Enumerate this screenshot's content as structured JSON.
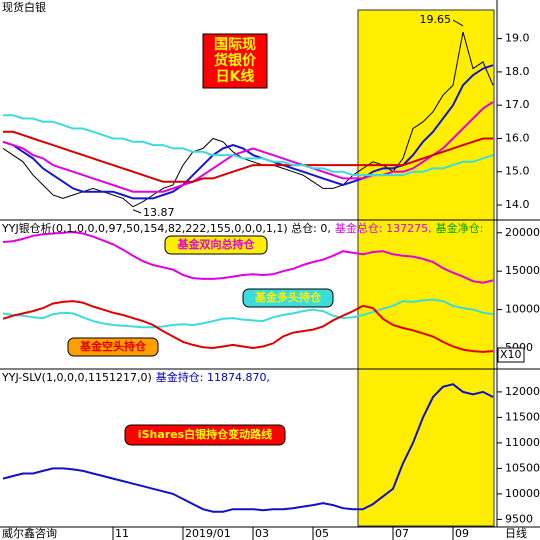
{
  "chart_data": [
    {
      "type": "line",
      "title": "现货白银",
      "label_lines": [
        "国际现",
        "货银价",
        "日K线"
      ],
      "annotations": [
        "19.65",
        "13.87"
      ],
      "ylim": [
        13.7,
        19.8
      ],
      "yticks": [
        {
          "value": 14,
          "label": "14.0"
        },
        {
          "value": 15,
          "label": "15.0"
        },
        {
          "value": 16,
          "label": "16.0"
        },
        {
          "value": 17,
          "label": "17.0"
        },
        {
          "value": 18,
          "label": "18.0"
        },
        {
          "value": 19,
          "label": "19.0"
        }
      ],
      "series": [
        {
          "color": "#000000",
          "values": [
            15.7,
            15.5,
            15.3,
            14.9,
            14.6,
            14.3,
            14.2,
            14.3,
            14.4,
            14.5,
            14.4,
            14.3,
            14.2,
            13.95,
            14.1,
            14.3,
            14.5,
            14.6,
            15.2,
            15.6,
            15.7,
            16.0,
            15.9,
            15.6,
            15.4,
            15.3,
            15.2,
            15.2,
            15.1,
            15.0,
            14.9,
            14.7,
            14.5,
            14.5,
            14.6,
            14.9,
            15.1,
            15.3,
            15.2,
            15.0,
            15.4,
            16.3,
            16.5,
            16.8,
            17.3,
            17.6,
            19.2,
            18.1,
            18.3,
            17.6
          ]
        },
        {
          "color": "#1515d0",
          "values": [
            15.9,
            15.8,
            15.6,
            15.4,
            15.1,
            14.9,
            14.7,
            14.5,
            14.4,
            14.4,
            14.4,
            14.4,
            14.3,
            14.2,
            14.2,
            14.2,
            14.3,
            14.4,
            14.6,
            14.9,
            15.2,
            15.5,
            15.7,
            15.8,
            15.7,
            15.5,
            15.4,
            15.3,
            15.2,
            15.1,
            15.0,
            14.9,
            14.8,
            14.7,
            14.6,
            14.7,
            14.8,
            15.0,
            15.1,
            15.1,
            15.2,
            15.5,
            15.9,
            16.2,
            16.6,
            17.0,
            17.6,
            17.9,
            18.1,
            18.2
          ]
        },
        {
          "color": "#e000e0",
          "values": [
            15.9,
            15.8,
            15.7,
            15.5,
            15.4,
            15.2,
            15.1,
            15.0,
            14.9,
            14.8,
            14.7,
            14.6,
            14.5,
            14.4,
            14.4,
            14.4,
            14.4,
            14.5,
            14.6,
            14.7,
            14.9,
            15.1,
            15.3,
            15.5,
            15.6,
            15.7,
            15.6,
            15.5,
            15.4,
            15.3,
            15.2,
            15.1,
            15.0,
            14.9,
            14.8,
            14.8,
            14.8,
            14.9,
            14.9,
            15.0,
            15.0,
            15.1,
            15.3,
            15.5,
            15.7,
            16.0,
            16.3,
            16.6,
            16.9,
            17.1
          ]
        },
        {
          "color": "#d40000",
          "values": [
            16.2,
            16.2,
            16.1,
            16.0,
            15.9,
            15.8,
            15.7,
            15.6,
            15.5,
            15.4,
            15.3,
            15.2,
            15.1,
            15.0,
            14.9,
            14.8,
            14.7,
            14.7,
            14.7,
            14.7,
            14.8,
            14.8,
            14.9,
            15.0,
            15.1,
            15.2,
            15.2,
            15.2,
            15.2,
            15.2,
            15.2,
            15.2,
            15.2,
            15.2,
            15.2,
            15.2,
            15.2,
            15.2,
            15.2,
            15.2,
            15.2,
            15.3,
            15.4,
            15.5,
            15.6,
            15.7,
            15.8,
            15.9,
            16.0,
            16.0
          ]
        },
        {
          "color": "#3cdcdc",
          "values": [
            16.7,
            16.7,
            16.6,
            16.6,
            16.5,
            16.5,
            16.4,
            16.3,
            16.3,
            16.2,
            16.1,
            16.0,
            16.0,
            15.9,
            15.9,
            15.8,
            15.8,
            15.7,
            15.7,
            15.6,
            15.6,
            15.5,
            15.5,
            15.5,
            15.4,
            15.4,
            15.4,
            15.3,
            15.3,
            15.2,
            15.2,
            15.1,
            15.1,
            15.0,
            15.0,
            14.9,
            14.9,
            14.9,
            14.9,
            14.9,
            14.9,
            15.0,
            15.0,
            15.1,
            15.1,
            15.2,
            15.3,
            15.3,
            15.4,
            15.5
          ]
        }
      ]
    },
    {
      "type": "line",
      "header": [
        {
          "text": "YYJ银仓析(0,1,0,0,0,97,50,154,82,222,155,0,0,0,1,1) 总仓: 0,",
          "color": "#000000"
        },
        {
          "text": "基金总仓: 137275,",
          "color": "#e000e0"
        },
        {
          "text": "基金净仓:",
          "color": "#00a000"
        }
      ],
      "unit_label": "X10",
      "ylim": [
        2400,
        21400
      ],
      "yticks": [
        5000,
        10000,
        15000,
        20000
      ],
      "series": [
        {
          "name": "基金双向总持仓",
          "color": "#e000e0",
          "values": [
            18800,
            18900,
            19200,
            19600,
            19800,
            19900,
            20000,
            20100,
            19900,
            19500,
            19000,
            18500,
            17800,
            17000,
            16300,
            15800,
            15500,
            15200,
            14500,
            14100,
            14000,
            14000,
            14100,
            14300,
            14500,
            14600,
            14500,
            14600,
            15000,
            15300,
            15800,
            16200,
            16500,
            17000,
            17600,
            17400,
            17200,
            17500,
            17600,
            17200,
            17000,
            16900,
            16600,
            16200,
            15400,
            14800,
            14300,
            13700,
            13500,
            13800
          ]
        },
        {
          "name": "基金多头持仓",
          "color": "#3cdcdc",
          "values": [
            9500,
            9300,
            9200,
            9000,
            8900,
            9400,
            9600,
            9500,
            9000,
            8500,
            8200,
            8000,
            7900,
            7800,
            7700,
            7700,
            7800,
            8000,
            8100,
            8000,
            8200,
            8500,
            8800,
            8900,
            8700,
            8600,
            8500,
            9000,
            9300,
            9500,
            9800,
            10000,
            9800,
            9200,
            8900,
            9000,
            9300,
            9700,
            10100,
            10500,
            11100,
            11000,
            11200,
            11300,
            11100,
            10500,
            10200,
            10000,
            9600,
            9400
          ]
        },
        {
          "name": "基金空头持仓",
          "color": "#e00000",
          "values": [
            8800,
            9200,
            9500,
            9800,
            10200,
            10800,
            11000,
            11100,
            10900,
            10400,
            10000,
            9600,
            9300,
            8900,
            8500,
            8000,
            7200,
            6500,
            5800,
            5400,
            5100,
            5000,
            5200,
            5400,
            5200,
            5000,
            5200,
            5600,
            6500,
            7000,
            7200,
            7400,
            7800,
            8600,
            9200,
            9800,
            10500,
            10200,
            8800,
            8000,
            7600,
            7300,
            6900,
            6500,
            5800,
            5200,
            4800,
            4600,
            4500,
            4600
          ]
        }
      ]
    },
    {
      "type": "line",
      "header": [
        {
          "text": "YYJ-SLV(1,0,0,0,1151217,0)",
          "color": "#000000"
        },
        {
          "text": "基金持仓: 11874.870,",
          "color": "#0000c0"
        }
      ],
      "label": "iShares白银持仓变动路线",
      "brand": "威尔鑫咨询",
      "x_label": "日线",
      "categories": [
        null,
        null,
        null,
        null,
        null,
        null,
        null,
        null,
        null,
        null,
        null,
        "11",
        null,
        null,
        null,
        null,
        null,
        null,
        "2019/01",
        null,
        null,
        null,
        null,
        null,
        null,
        "03",
        null,
        null,
        null,
        null,
        null,
        "05",
        null,
        null,
        null,
        null,
        null,
        null,
        null,
        "07",
        null,
        null,
        null,
        null,
        null,
        "09",
        null,
        null,
        null,
        null
      ],
      "ylim": [
        9390,
        12390
      ],
      "yticks": [
        9500,
        10000,
        10500,
        11000,
        11500,
        12000
      ],
      "series": [
        {
          "color": "#1010c8",
          "values": [
            10300,
            10350,
            10400,
            10400,
            10450,
            10500,
            10500,
            10480,
            10450,
            10400,
            10350,
            10300,
            10250,
            10200,
            10150,
            10100,
            10050,
            10000,
            9900,
            9800,
            9700,
            9650,
            9650,
            9700,
            9700,
            9700,
            9680,
            9700,
            9700,
            9720,
            9750,
            9780,
            9820,
            9780,
            9720,
            9700,
            9700,
            9800,
            9950,
            10100,
            10600,
            11000,
            11500,
            11900,
            12100,
            12150,
            12000,
            11950,
            12000,
            11900
          ]
        }
      ]
    }
  ]
}
